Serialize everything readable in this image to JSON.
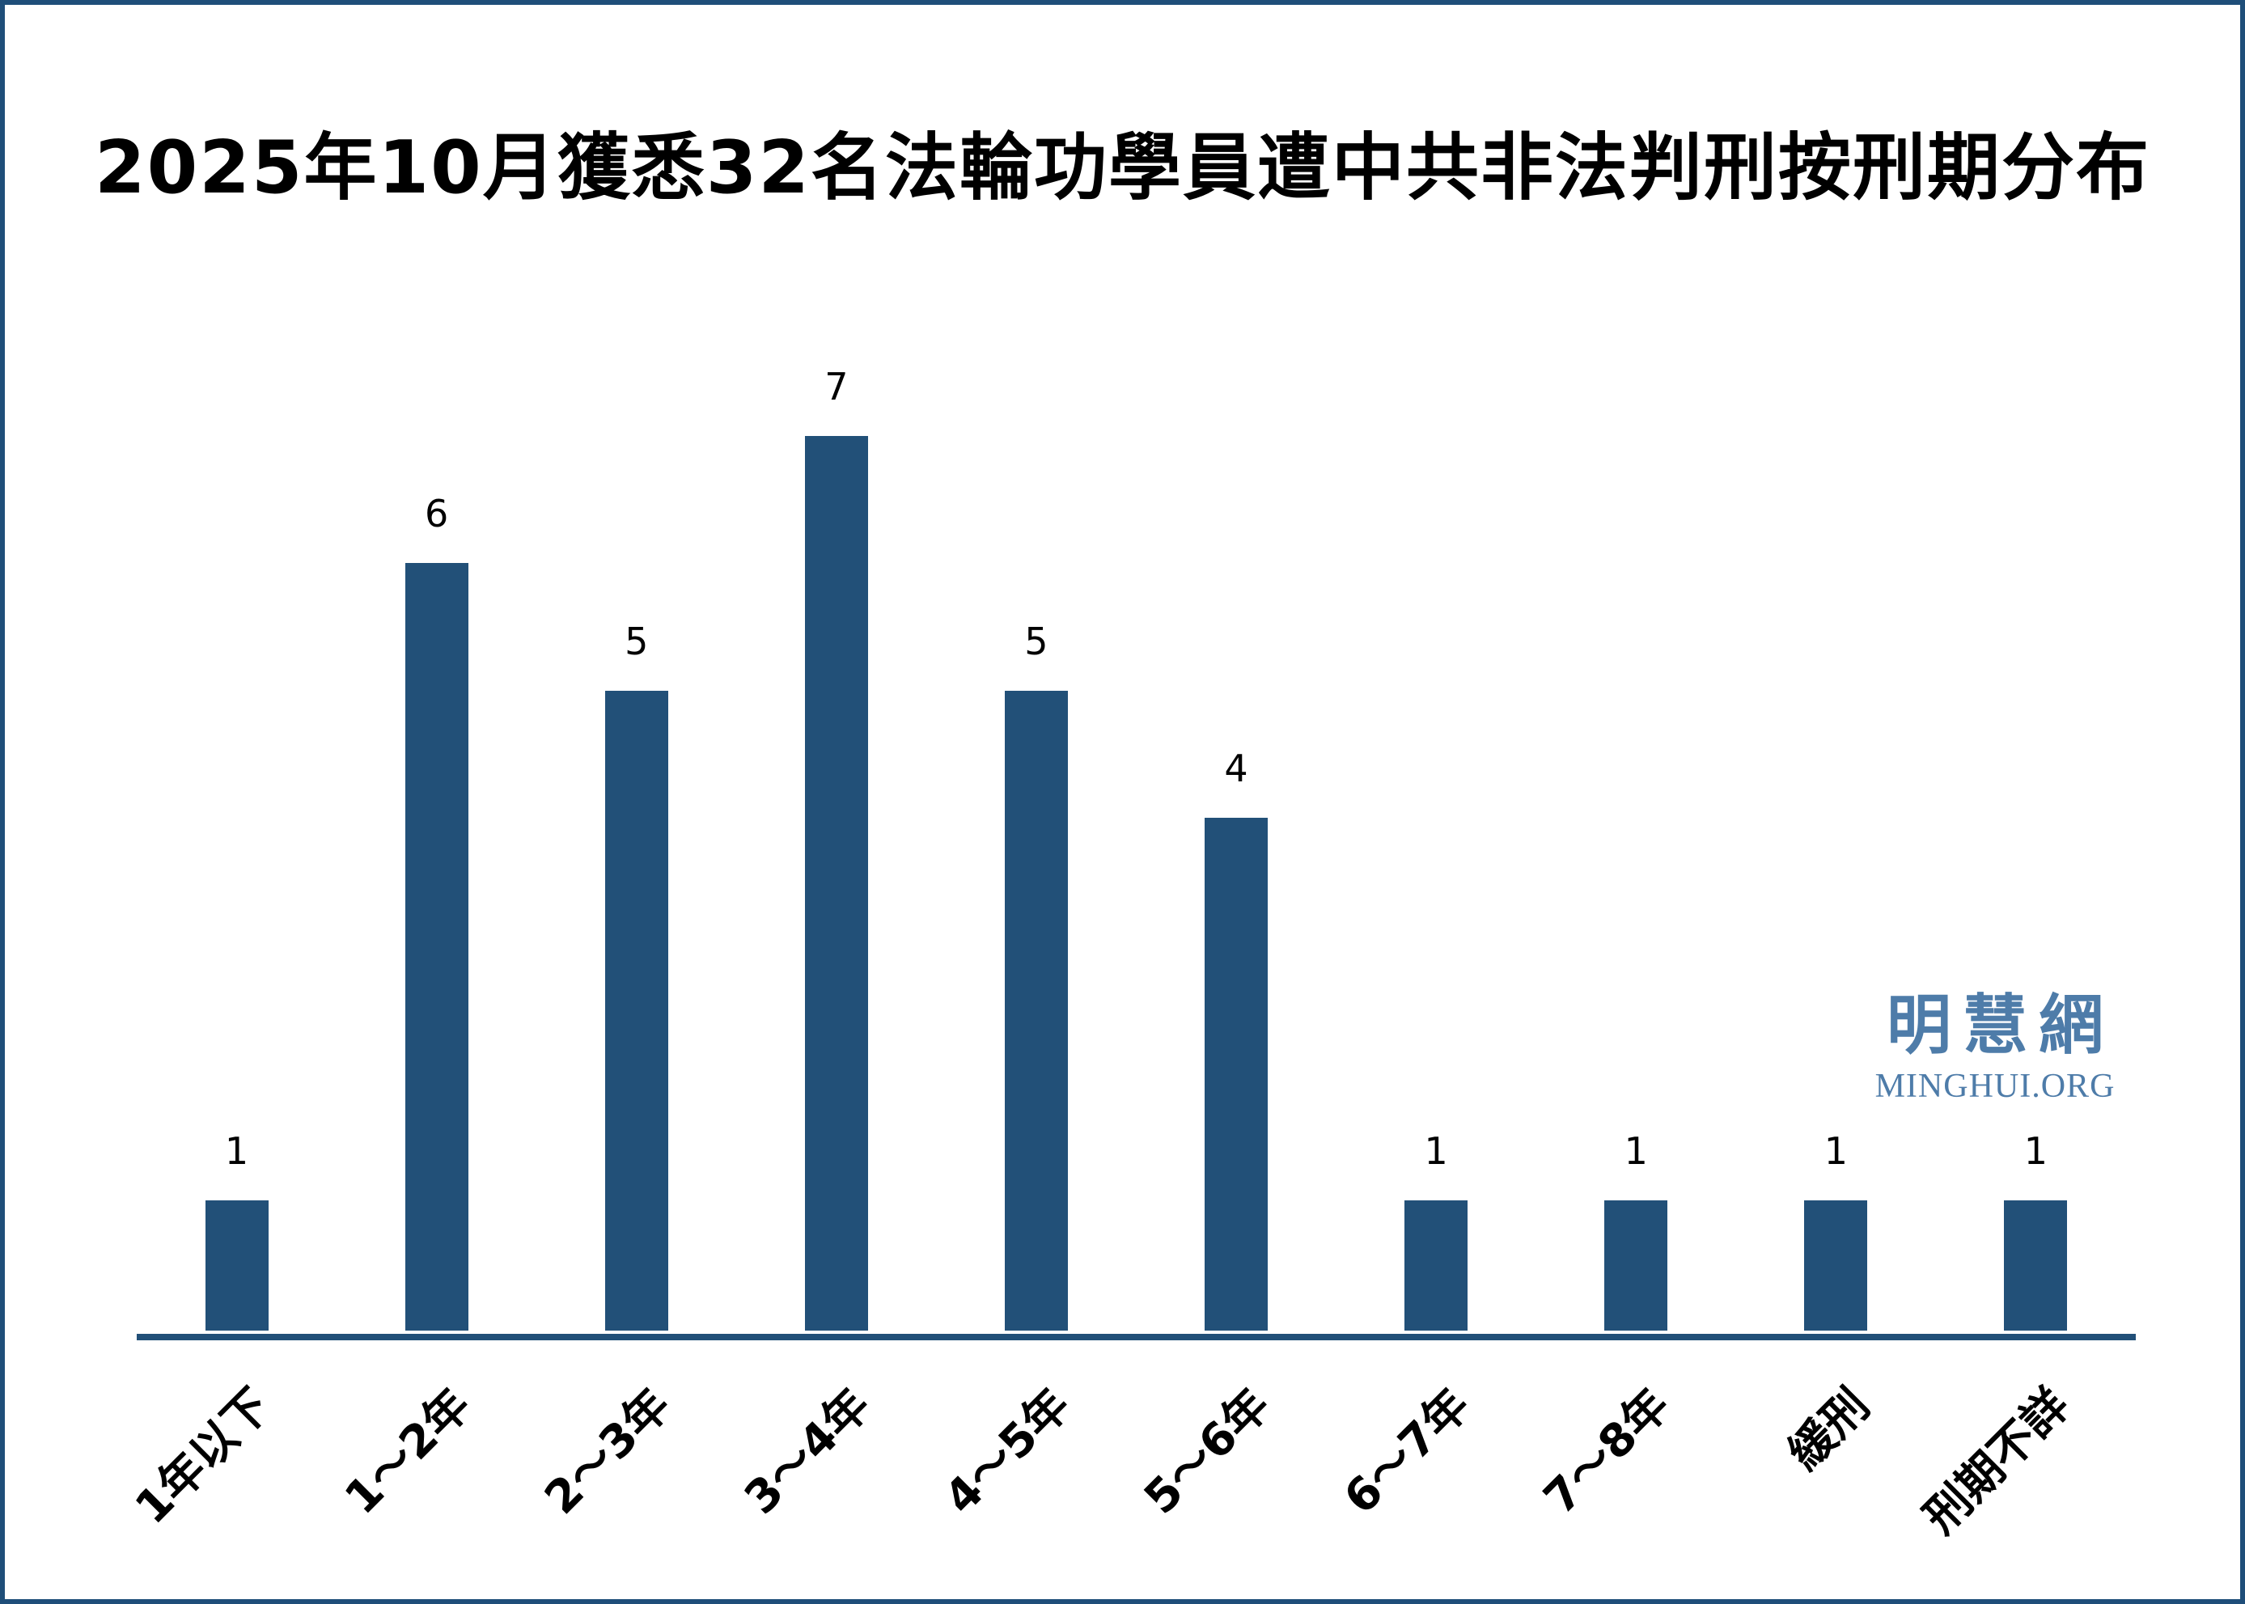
{
  "title": {
    "text": "2025年10月獲悉32名法輪功學員遭中共非法判刑按刑期分布"
  },
  "watermark": {
    "cjk": "明慧網",
    "latin": "MINGHUI.ORG",
    "color": "#4E7CA9"
  },
  "frame": {
    "background": "#ffffff",
    "border_color": "#1F4E79"
  },
  "chart_data": {
    "type": "bar",
    "title": "2025年10月獲悉32名法輪功學員遭中共非法判刑按刑期分布",
    "categories": [
      "1年以下",
      "1～2年",
      "2～3年",
      "3～4年",
      "4～5年",
      "5～6年",
      "6～7年",
      "7～8年",
      "緩刑",
      "刑期不詳"
    ],
    "values": [
      1,
      6,
      5,
      7,
      5,
      4,
      1,
      1,
      1,
      1
    ],
    "xlabel": "",
    "ylabel": "",
    "ylim": [
      0,
      7.5
    ],
    "bar_color": "#225078",
    "axis_color": "#225078",
    "value_label_color": "#000000",
    "value_labels_shown": true,
    "x_tick_rotation_deg": 45,
    "grid": false,
    "legend": false
  }
}
